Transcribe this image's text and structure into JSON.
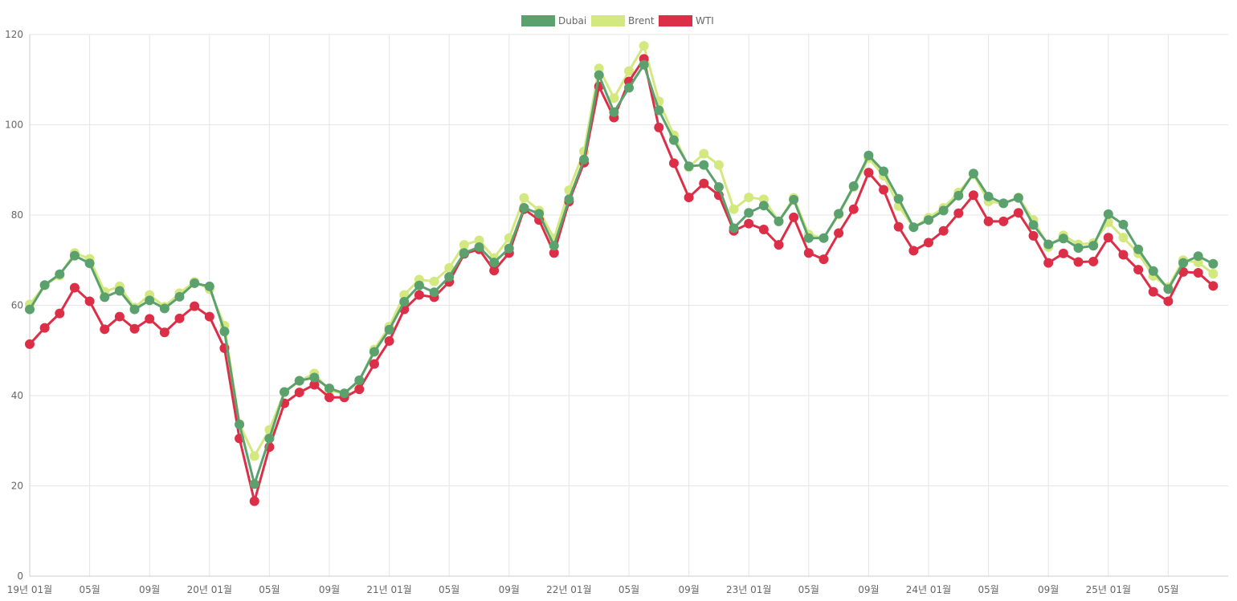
{
  "chart_data": {
    "type": "line",
    "title": "",
    "xlabel": "",
    "ylabel": "",
    "ylim": [
      0,
      120
    ],
    "y_ticks": [
      "0",
      "20",
      "40",
      "60",
      "80",
      "100",
      "120"
    ],
    "x_tick_labels": [
      {
        "index": 0,
        "label": "19년 01월"
      },
      {
        "index": 4,
        "label": "05월"
      },
      {
        "index": 8,
        "label": "09월"
      },
      {
        "index": 12,
        "label": "20년 01월"
      },
      {
        "index": 16,
        "label": "05월"
      },
      {
        "index": 20,
        "label": "09월"
      },
      {
        "index": 24,
        "label": "21년 01월"
      },
      {
        "index": 28,
        "label": "05월"
      },
      {
        "index": 32,
        "label": "09월"
      },
      {
        "index": 36,
        "label": "22년 01월"
      },
      {
        "index": 40,
        "label": "05월"
      },
      {
        "index": 44,
        "label": "09월"
      },
      {
        "index": 48,
        "label": "23년 01월"
      },
      {
        "index": 52,
        "label": "05월"
      },
      {
        "index": 56,
        "label": "09월"
      },
      {
        "index": 60,
        "label": "24년 01월"
      },
      {
        "index": 64,
        "label": "05월"
      },
      {
        "index": 68,
        "label": "09월"
      },
      {
        "index": 72,
        "label": "25년 01월"
      },
      {
        "index": 76,
        "label": "05월"
      }
    ],
    "grid": true,
    "legend_position": "top",
    "series": [
      {
        "name": "Brent",
        "color": "#d4e880",
        "values": [
          60.2,
          64.4,
          66.6,
          71.6,
          70.3,
          63.0,
          64.2,
          59.5,
          62.3,
          59.7,
          62.7,
          65.2,
          63.6,
          55.5,
          33.7,
          26.6,
          32.4,
          40.8,
          43.2,
          44.9,
          41.1,
          40.5,
          43.2,
          50.2,
          55.3,
          62.3,
          65.7,
          65.3,
          68.3,
          73.4,
          74.4,
          70.5,
          74.9,
          83.8,
          81.0,
          74.8,
          85.5,
          94.1,
          112.5,
          105.9,
          111.9,
          117.5,
          105.2,
          97.7,
          90.6,
          93.6,
          91.1,
          81.3,
          83.9,
          83.5,
          78.6,
          83.8,
          75.7,
          74.9,
          80.1,
          86.2,
          92.6,
          88.7,
          82.0,
          77.3,
          79.4,
          81.6,
          85.0,
          89.0,
          83.0,
          82.6,
          83.9,
          78.9,
          72.9,
          75.5,
          73.5,
          73.8,
          78.4,
          75.0,
          71.5,
          66.5,
          64.0,
          70.0,
          69.5,
          67.0
        ]
      },
      {
        "name": "WTI",
        "color": "#dc2f47",
        "values": [
          51.4,
          55.0,
          58.2,
          63.9,
          60.9,
          54.7,
          57.5,
          54.8,
          57.0,
          54.0,
          57.1,
          59.8,
          57.5,
          50.5,
          30.5,
          16.6,
          28.6,
          38.3,
          40.7,
          42.4,
          39.6,
          39.6,
          41.4,
          47.0,
          52.1,
          59.1,
          62.3,
          61.8,
          65.2,
          71.4,
          72.4,
          67.7,
          71.6,
          81.3,
          78.9,
          71.6,
          83.0,
          91.6,
          108.5,
          101.6,
          109.6,
          114.6,
          99.4,
          91.5,
          83.9,
          87.0,
          84.4,
          76.5,
          78.1,
          76.8,
          73.4,
          79.5,
          71.6,
          70.2,
          76.0,
          81.3,
          89.4,
          85.6,
          77.4,
          72.1,
          73.9,
          76.5,
          80.4,
          84.4,
          78.6,
          78.6,
          80.5,
          75.4,
          69.4,
          71.5,
          69.6,
          69.7,
          75.0,
          71.2,
          67.9,
          63.0,
          60.9,
          67.4,
          67.2,
          64.3
        ]
      },
      {
        "name": "Dubai",
        "color": "#5aa16e",
        "values": [
          59.1,
          64.5,
          66.9,
          71.0,
          69.3,
          61.8,
          63.2,
          59.1,
          61.1,
          59.3,
          61.9,
          64.9,
          64.2,
          54.2,
          33.6,
          20.4,
          30.5,
          40.8,
          43.3,
          44.0,
          41.6,
          40.5,
          43.4,
          49.7,
          54.6,
          60.8,
          64.4,
          62.9,
          66.3,
          71.6,
          72.9,
          69.5,
          72.6,
          81.6,
          80.3,
          73.2,
          83.5,
          92.3,
          111.0,
          102.8,
          108.2,
          113.3,
          103.2,
          96.6,
          90.8,
          91.1,
          86.2,
          77.1,
          80.5,
          82.1,
          78.6,
          83.4,
          74.9,
          74.9,
          80.3,
          86.4,
          93.2,
          89.7,
          83.6,
          77.3,
          78.9,
          81.0,
          84.3,
          89.2,
          84.1,
          82.6,
          83.8,
          77.8,
          73.5,
          74.8,
          72.7,
          73.2,
          80.2,
          77.9,
          72.4,
          67.6,
          63.6,
          69.4,
          70.9,
          69.2
        ]
      }
    ],
    "legend_order": [
      "Dubai",
      "Brent",
      "WTI"
    ]
  }
}
